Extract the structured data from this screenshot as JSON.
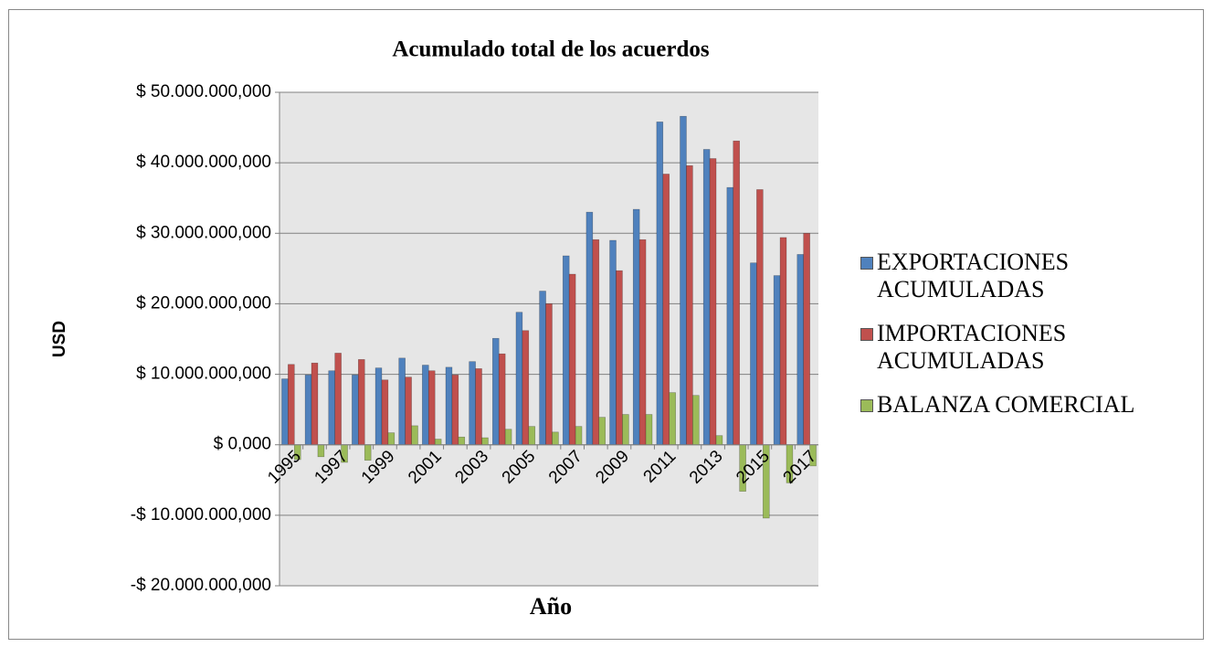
{
  "chart_data": {
    "type": "bar",
    "title": "Acumulado total de los acuerdos",
    "y_label": "USD",
    "x_label": "Año",
    "categories": [
      "1995",
      null,
      "1997",
      null,
      "1999",
      null,
      "2001",
      null,
      "2003",
      null,
      "2005",
      null,
      "2007",
      null,
      "2009",
      null,
      "2011",
      null,
      "2013",
      null,
      "2015",
      null,
      "2017"
    ],
    "series": [
      {
        "name": "EXPORTACIONES ACUMULADAS",
        "color": "#4f81bd",
        "values": [
          9350000000,
          9900000000,
          10500000000,
          9900000000,
          10900000000,
          12300000000,
          11300000000,
          11000000000,
          11800000000,
          15100000000,
          18800000000,
          21800000000,
          26800000000,
          33000000000,
          29000000000,
          33400000000,
          45800000000,
          46600000000,
          41900000000,
          36500000000,
          25800000000,
          24000000000,
          27000000000
        ]
      },
      {
        "name": "IMPORTACIONES ACUMULADAS",
        "color": "#c0504d",
        "values": [
          11400000000,
          11600000000,
          13000000000,
          12100000000,
          9200000000,
          9600000000,
          10500000000,
          9900000000,
          10800000000,
          12900000000,
          16200000000,
          20000000000,
          24200000000,
          29100000000,
          24700000000,
          29100000000,
          38400000000,
          39600000000,
          40600000000,
          43100000000,
          36200000000,
          29400000000,
          30000000000
        ]
      },
      {
        "name": "BALANZA COMERCIAL",
        "color": "#9bbb59",
        "values": [
          -2100000000,
          -1700000000,
          -2500000000,
          -2200000000,
          1700000000,
          2700000000,
          800000000,
          1100000000,
          1000000000,
          2200000000,
          2600000000,
          1800000000,
          2600000000,
          3900000000,
          4300000000,
          4300000000,
          7400000000,
          7000000000,
          1300000000,
          -6600000000,
          -10400000000,
          -5400000000,
          -3000000000
        ]
      }
    ],
    "ylim": [
      -20000000000,
      50000000000
    ],
    "yticks": [
      {
        "value": -20000000000,
        "label": "-$ 20.000.000,000"
      },
      {
        "value": -10000000000,
        "label": "-$ 10.000.000,000"
      },
      {
        "value": 0,
        "label": "$ 0,000"
      },
      {
        "value": 10000000000,
        "label": "$ 10.000.000,000"
      },
      {
        "value": 20000000000,
        "label": "$ 20.000.000,000"
      },
      {
        "value": 30000000000,
        "label": "$ 30.000.000,000"
      },
      {
        "value": 40000000000,
        "label": "$ 40.000.000,000"
      },
      {
        "value": 50000000000,
        "label": "$ 50.000.000,000"
      }
    ],
    "grid": true,
    "legend": "right"
  }
}
